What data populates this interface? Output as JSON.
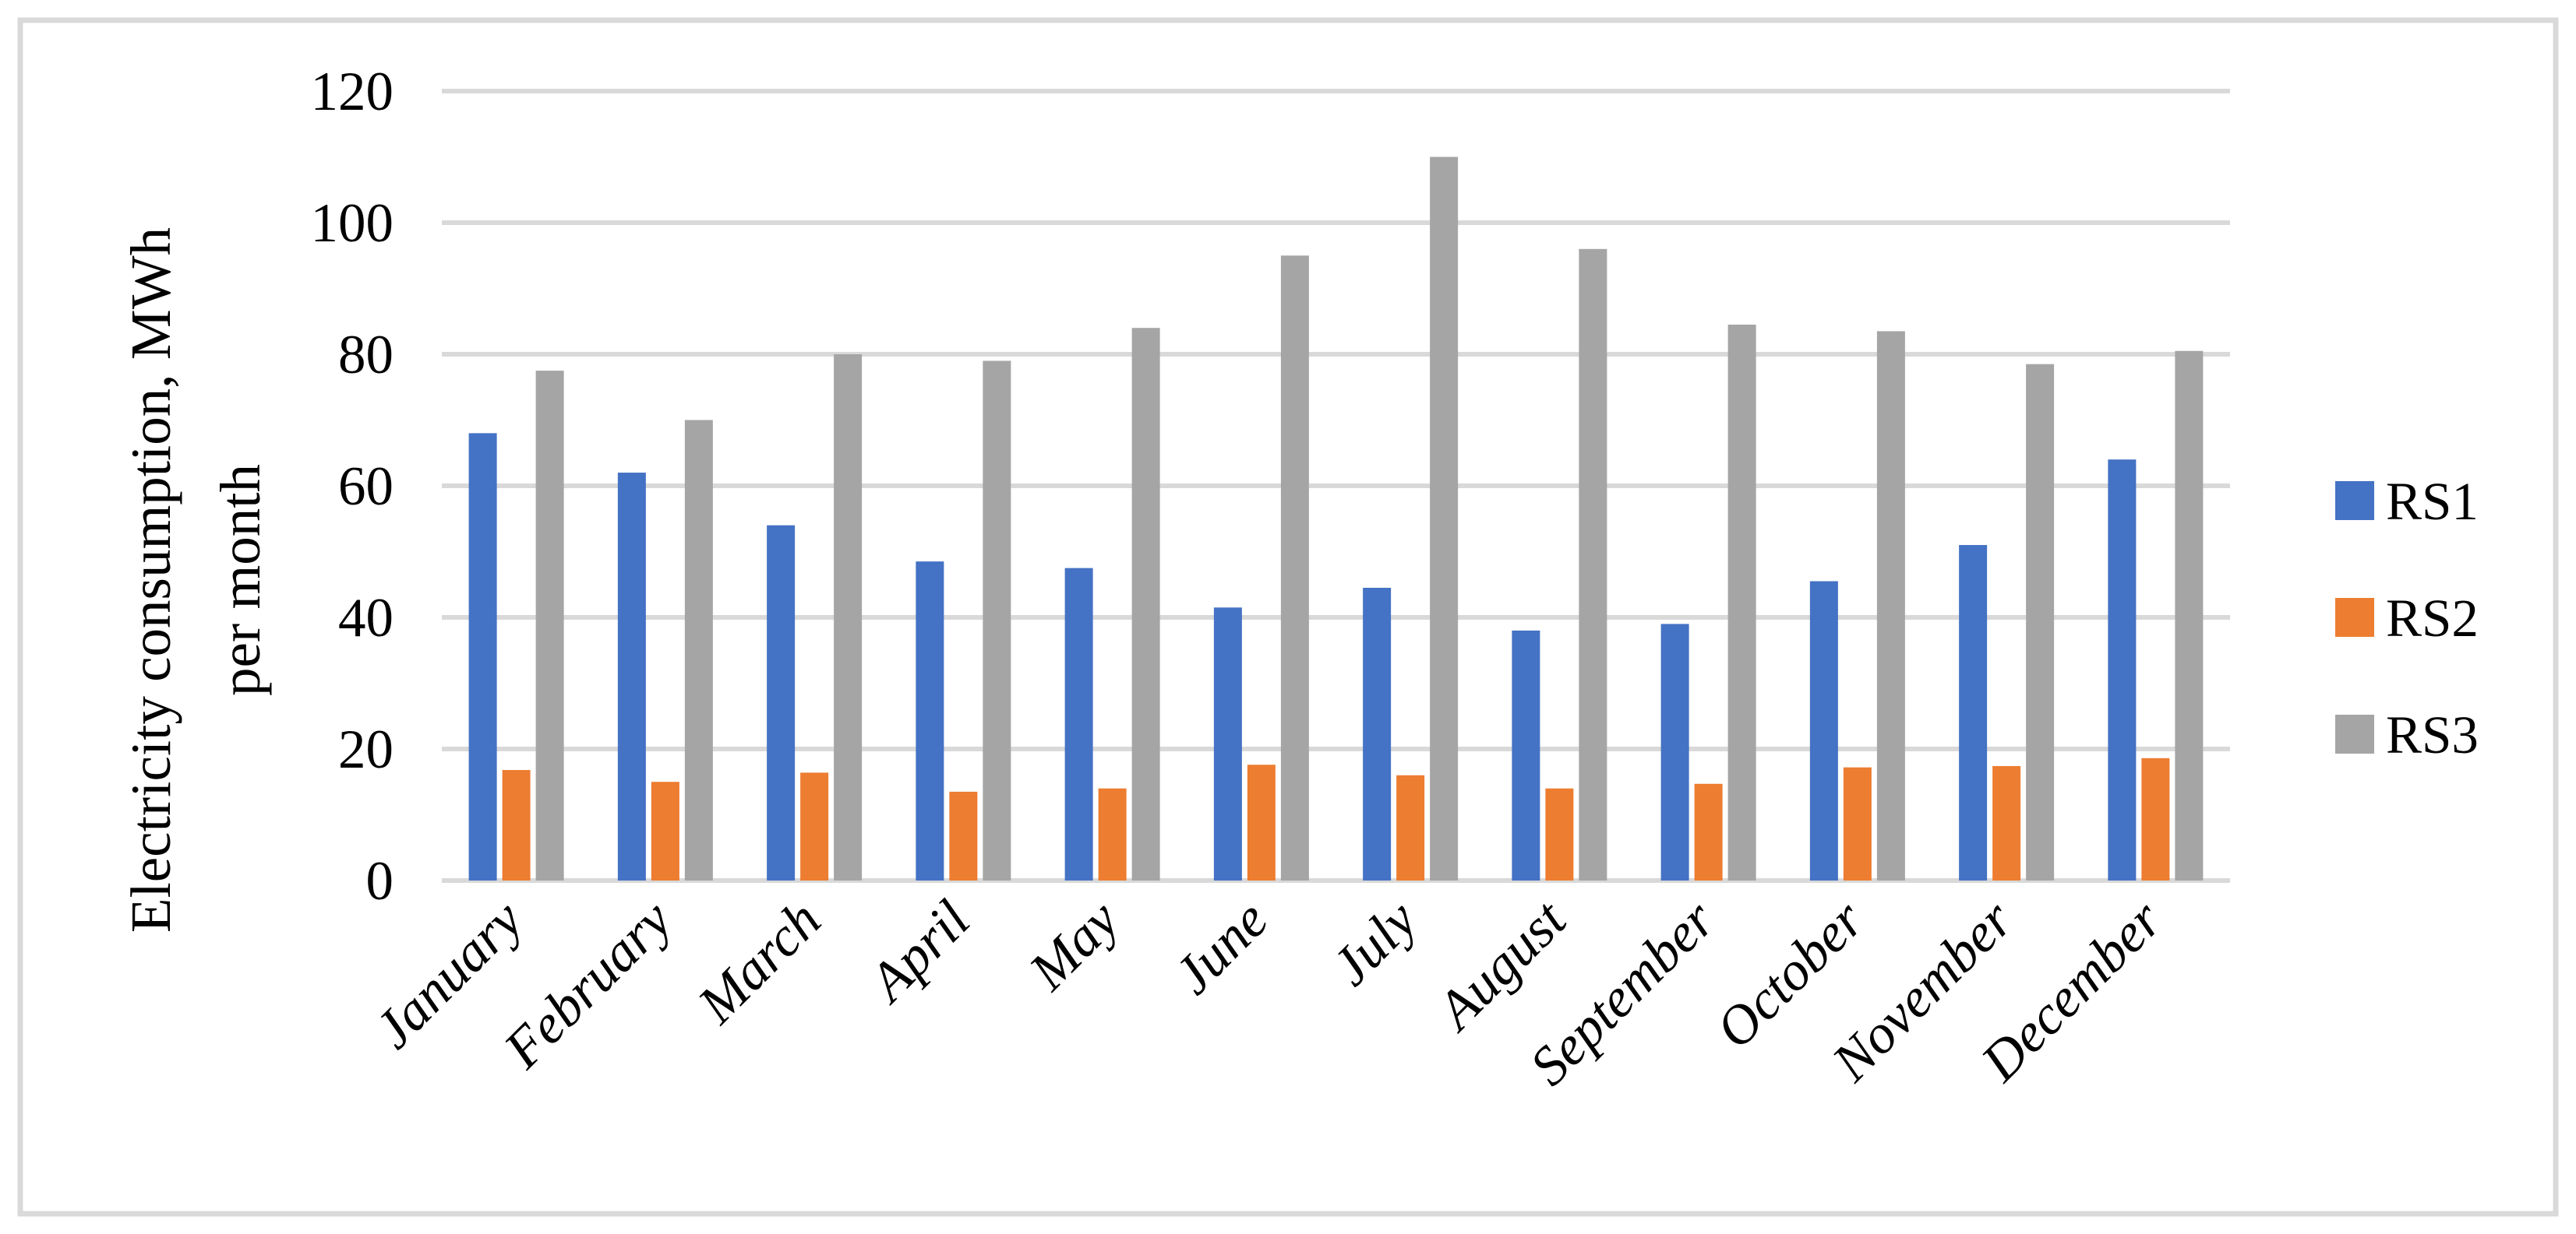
{
  "figure": {
    "background": "#FFFFFF",
    "border_color": "#D9D9D9",
    "text_color": "#000000"
  },
  "chart_data": {
    "type": "bar",
    "title": "",
    "ylabel_line1": "Electricity consumption, MWh",
    "ylabel_line2": "per month",
    "xlabel": "",
    "ylim": [
      0,
      120
    ],
    "ytick_interval": 20,
    "yticks": [
      "0",
      "20",
      "40",
      "60",
      "80",
      "100",
      "120"
    ],
    "grid": true,
    "gridline_color": "#D9D9D9",
    "legend_position": "right",
    "categories": [
      "January",
      "February",
      "March",
      "April",
      "May",
      "June",
      "July",
      "August",
      "September",
      "October",
      "November",
      "December"
    ],
    "series": [
      {
        "name": "RS1",
        "color": "#4472C4",
        "values": [
          68,
          62,
          54,
          48.5,
          47.5,
          41.5,
          44.5,
          38,
          39,
          45.5,
          51,
          64
        ]
      },
      {
        "name": "RS2",
        "color": "#ED7D31",
        "values": [
          16.8,
          15,
          16.4,
          13.5,
          14,
          17.6,
          16,
          14,
          14.7,
          17.2,
          17.4,
          18.6
        ]
      },
      {
        "name": "RS3",
        "color": "#A5A5A5",
        "values": [
          77.5,
          70,
          80,
          79,
          84,
          95,
          110,
          96,
          84.5,
          83.5,
          78.5,
          80.5
        ]
      }
    ]
  }
}
